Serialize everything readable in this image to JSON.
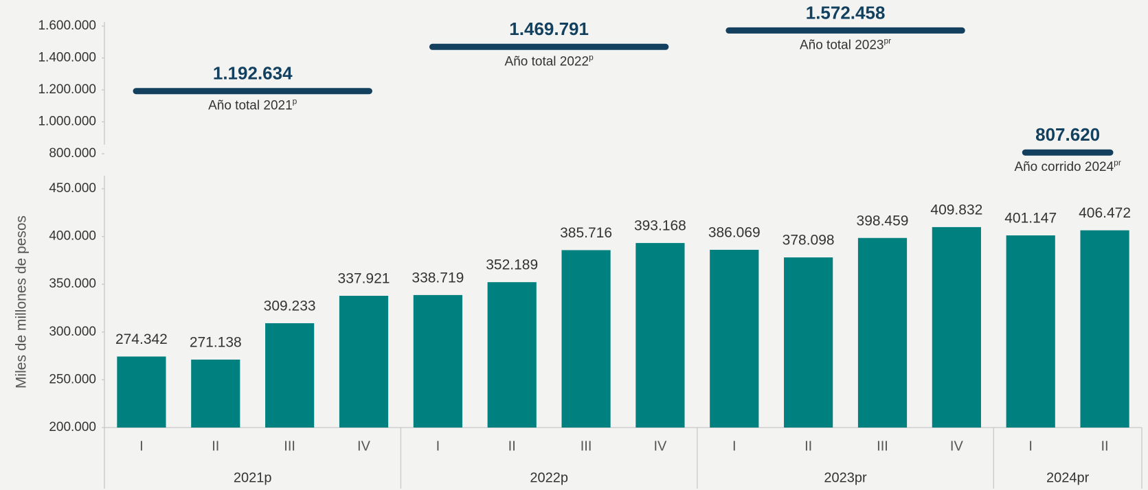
{
  "chart_data": [
    {
      "type": "segment",
      "values": [
        1192634,
        1469791,
        1572458,
        807620
      ],
      "value_labels": [
        "1.192.634",
        "1.469.791",
        "1.572.458",
        "807.620"
      ],
      "labels": [
        {
          "text": "Año total 2021",
          "sup": "p"
        },
        {
          "text": "Año total 2022",
          "sup": "p"
        },
        {
          "text": "Año total 2023",
          "sup": "pr"
        },
        {
          "text": "Año corrido 2024",
          "sup": "pr"
        }
      ],
      "color": "#12405e",
      "ylim": [
        800000,
        1600000
      ],
      "yticks": [
        {
          "value": 800000,
          "label": "800.000"
        },
        {
          "value": 1000000,
          "label": "1.000.000"
        },
        {
          "value": 1200000,
          "label": "1.200.000"
        },
        {
          "value": 1400000,
          "label": "1.400.000"
        },
        {
          "value": 1600000,
          "label": "1.600.000"
        }
      ]
    },
    {
      "type": "bar",
      "y_label": "Miles de millones de pesos",
      "groups": [
        {
          "label": "2021p",
          "categories": [
            "I",
            "II",
            "III",
            "IV"
          ]
        },
        {
          "label": "2022p",
          "categories": [
            "I",
            "II",
            "III",
            "IV"
          ]
        },
        {
          "label": "2023pr",
          "categories": [
            "I",
            "II",
            "III",
            "IV"
          ]
        },
        {
          "label": "2024pr",
          "categories": [
            "I",
            "II"
          ]
        }
      ],
      "values": [
        274342,
        271138,
        309233,
        337921,
        338719,
        352189,
        385716,
        393168,
        386069,
        378098,
        398459,
        409832,
        401147,
        406472
      ],
      "value_labels": [
        "274.342",
        "271.138",
        "309.233",
        "337.921",
        "338.719",
        "352.189",
        "385.716",
        "393.168",
        "386.069",
        "378.098",
        "398.459",
        "409.832",
        "401.147",
        "406.472"
      ],
      "color": "#00807f",
      "ylim": [
        200000,
        450000
      ],
      "yticks": [
        {
          "value": 200000,
          "label": "200.000"
        },
        {
          "value": 250000,
          "label": "250.000"
        },
        {
          "value": 300000,
          "label": "300.000"
        },
        {
          "value": 350000,
          "label": "350.000"
        },
        {
          "value": 400000,
          "label": "400.000"
        },
        {
          "value": 450000,
          "label": "450.000"
        }
      ]
    }
  ]
}
